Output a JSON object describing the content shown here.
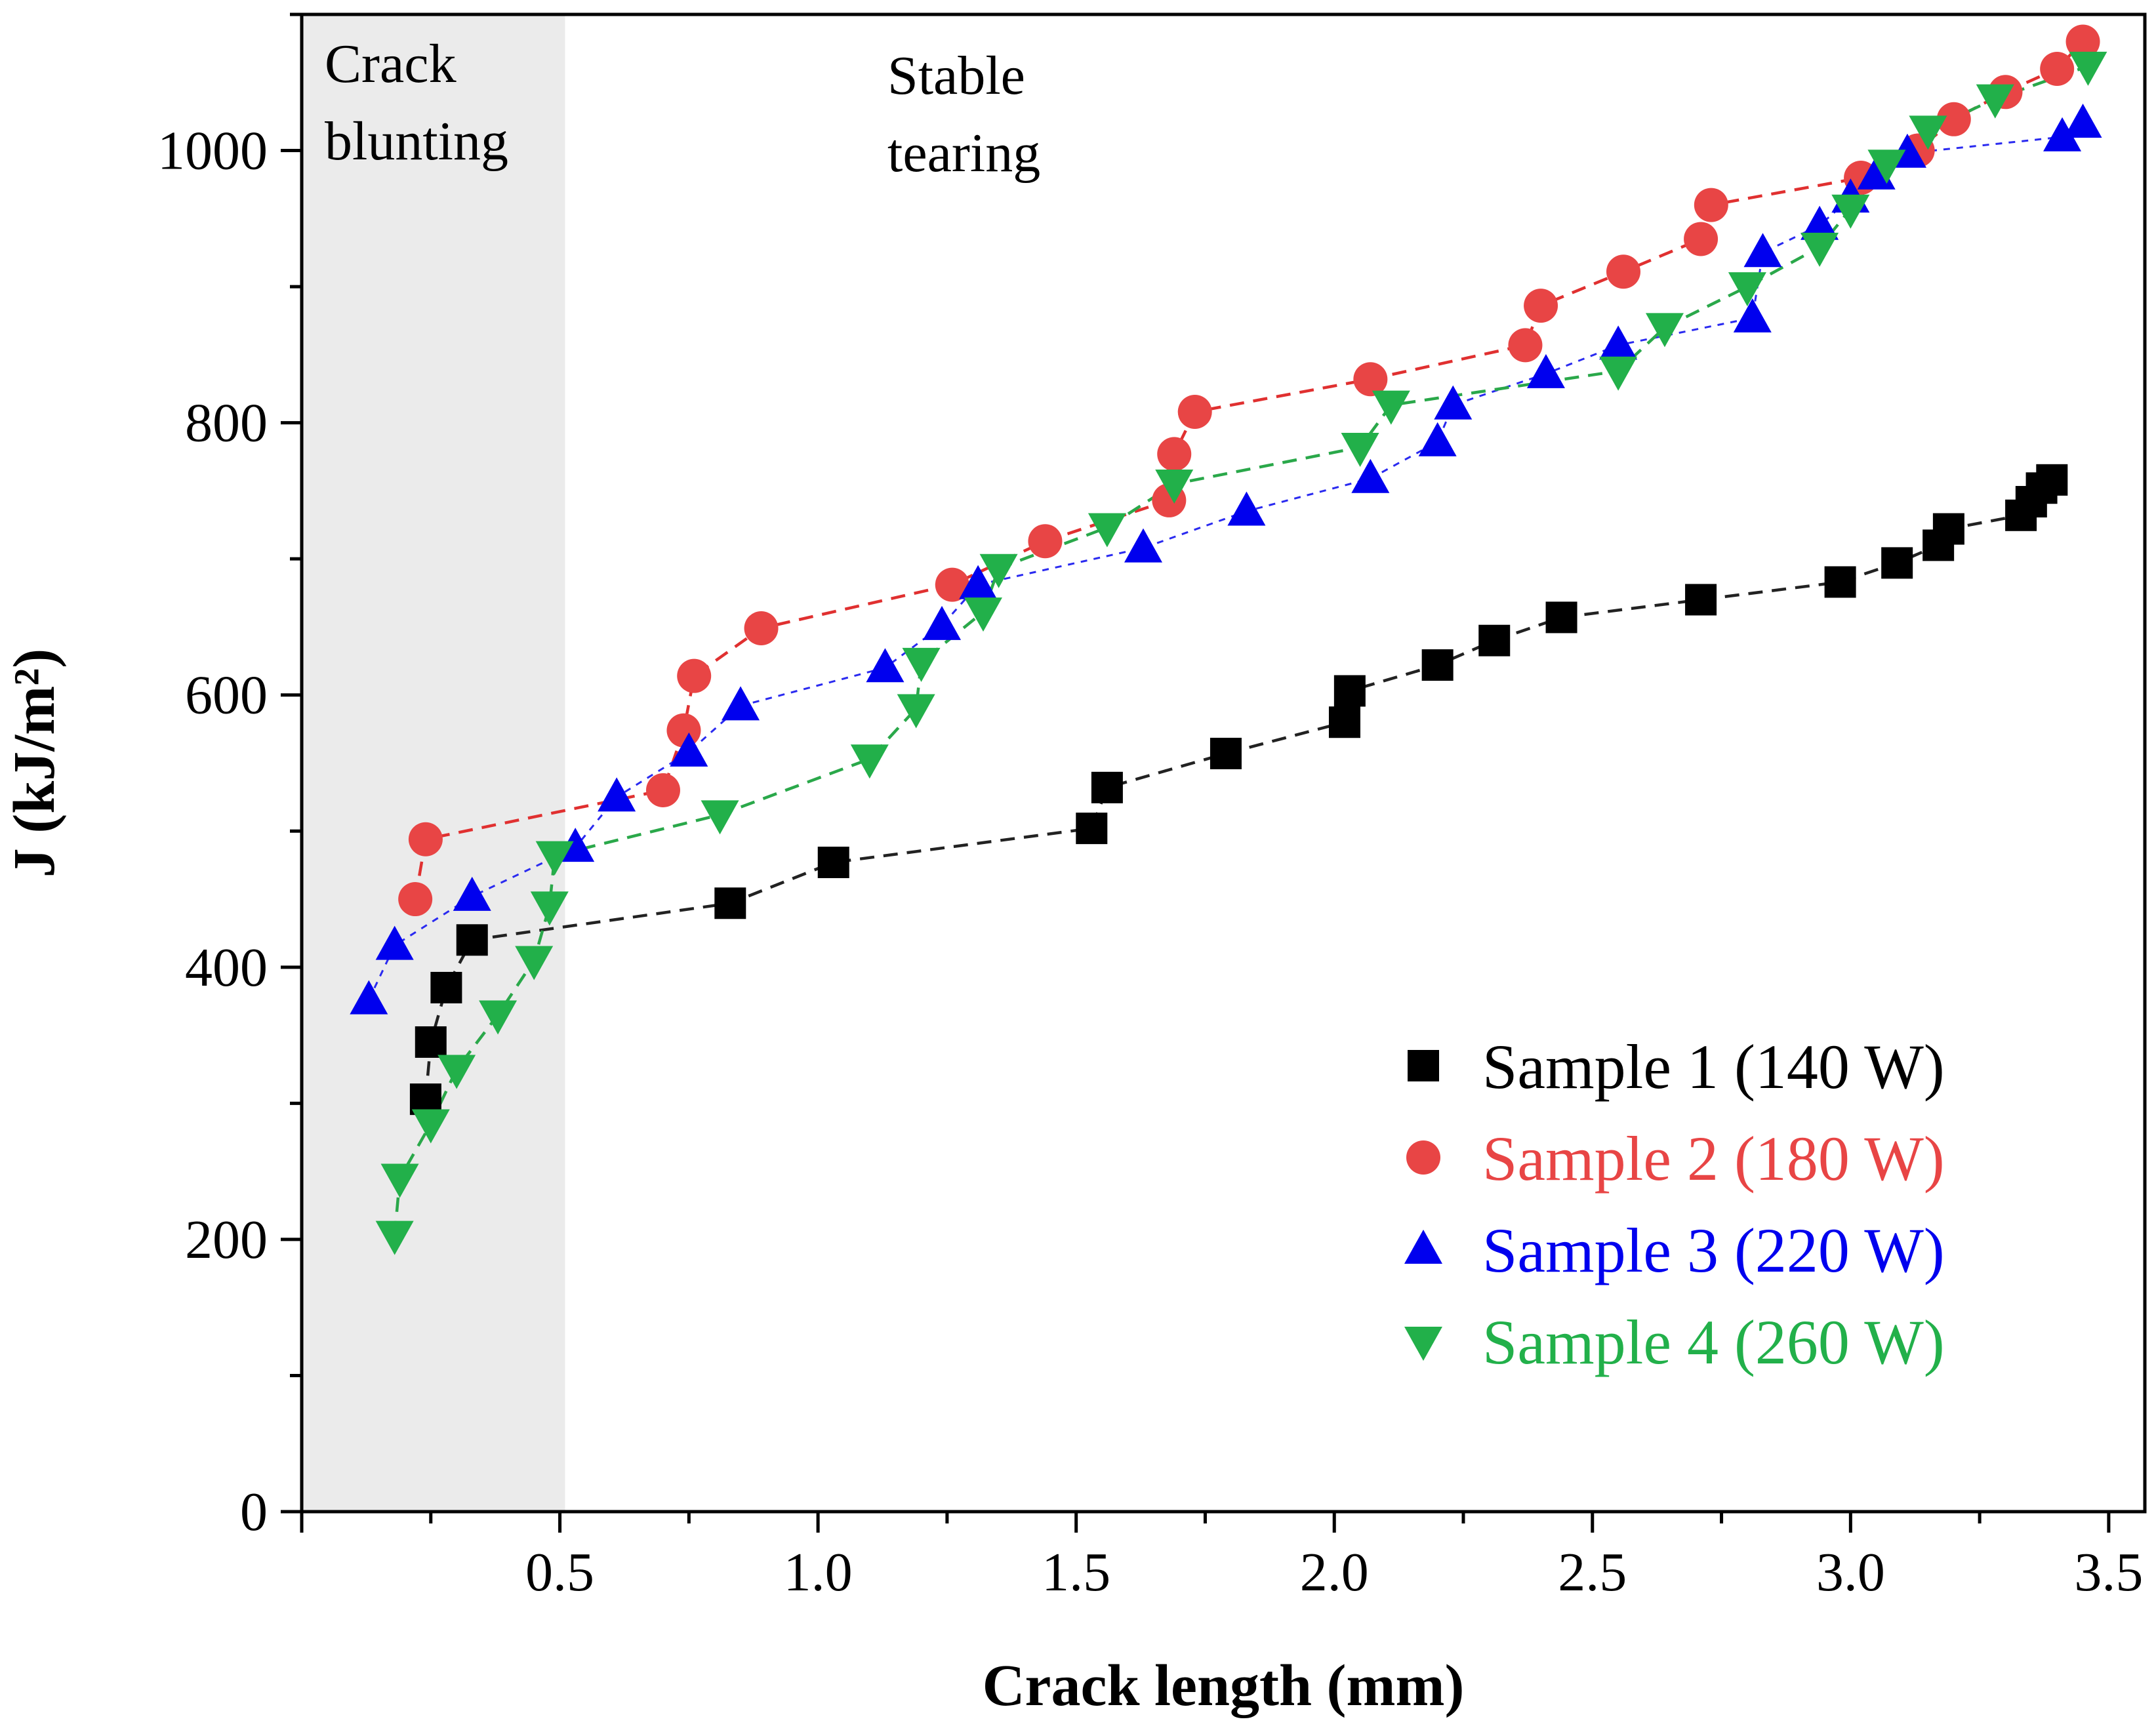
{
  "chart_data": {
    "type": "scatter",
    "title": "",
    "xlabel": "Crack length (mm)",
    "ylabel": "J (kJ/m²)",
    "xlim": [
      0,
      3.57
    ],
    "ylim": [
      0,
      1100
    ],
    "xticks": [
      0.5,
      1.0,
      1.5,
      2.0,
      2.5,
      3.0,
      3.5
    ],
    "xtick_labels": [
      "0.5",
      "1.0",
      "1.5",
      "2.0",
      "2.5",
      "3.0",
      "3.5"
    ],
    "yticks": [
      0,
      200,
      400,
      600,
      800,
      1000
    ],
    "ytick_labels": [
      "0",
      "200",
      "400",
      "600",
      "800",
      "1000"
    ],
    "grid": false,
    "legend_position": "bottom-right",
    "regions": [
      {
        "label_lines": [
          "Crack",
          "blunting"
        ],
        "x_start": 0,
        "x_end": 0.51,
        "shaded": true,
        "color": "#ebebeb"
      },
      {
        "label_lines": [
          "Stable",
          "tearing"
        ],
        "x_start": 0.51,
        "x_end": 3.57,
        "shaded": false
      }
    ],
    "series": [
      {
        "name": "Sample 1 (140 W)",
        "color": "#000000",
        "line_color": "#222222",
        "marker": "square",
        "x": [
          0.24,
          0.25,
          0.28,
          0.33,
          0.83,
          1.03,
          1.53,
          1.56,
          1.79,
          2.02,
          2.03,
          2.2,
          2.31,
          2.44,
          2.71,
          2.98,
          3.09,
          3.17,
          3.19,
          3.33,
          3.35,
          3.37,
          3.39
        ],
        "values": [
          303,
          345,
          385,
          420,
          447,
          477,
          502,
          532,
          557,
          580,
          603,
          622,
          640,
          657,
          670,
          683,
          697,
          710,
          722,
          732,
          742,
          752,
          758
        ]
      },
      {
        "name": "Sample 2 (180 W)",
        "color": "#e84545",
        "line_color": "#e03030",
        "marker": "circle",
        "x": [
          0.22,
          0.24,
          0.7,
          0.74,
          0.76,
          0.89,
          1.26,
          1.44,
          1.68,
          1.69,
          1.73,
          2.07,
          2.37,
          2.4,
          2.56,
          2.71,
          2.73,
          3.02,
          3.13,
          3.2,
          3.3,
          3.4,
          3.45
        ],
        "values": [
          450,
          494,
          530,
          574,
          614,
          649,
          681,
          713,
          743,
          777,
          808,
          832,
          857,
          886,
          911,
          935,
          960,
          980,
          1000,
          1023,
          1043,
          1060,
          1080
        ]
      },
      {
        "name": "Sample 3 (220 W)",
        "color": "#0000ee",
        "line_color": "#2a2af0",
        "marker": "triangle-up",
        "x": [
          0.13,
          0.18,
          0.33,
          0.53,
          0.61,
          0.75,
          0.85,
          1.13,
          1.24,
          1.31,
          1.63,
          1.83,
          2.07,
          2.2,
          2.23,
          2.41,
          2.55,
          2.81,
          2.83,
          2.94,
          3.0,
          3.05,
          3.11,
          3.41,
          3.45
        ],
        "values": [
          376,
          416,
          452,
          488,
          525,
          558,
          592,
          620,
          651,
          681,
          708,
          735,
          759,
          786,
          813,
          836,
          857,
          877,
          925,
          945,
          965,
          982,
          998,
          1010,
          1020
        ]
      },
      {
        "name": "Sample 4 (260 W)",
        "color": "#22b04a",
        "line_color": "#2aa84a",
        "marker": "triangle-down",
        "x": [
          0.18,
          0.19,
          0.25,
          0.3,
          0.38,
          0.45,
          0.48,
          0.49,
          0.81,
          1.1,
          1.19,
          1.2,
          1.32,
          1.35,
          1.56,
          1.69,
          2.05,
          2.11,
          2.55,
          2.64,
          2.8,
          2.94,
          3.0,
          3.07,
          3.15,
          3.28,
          3.46
        ],
        "values": [
          203,
          245,
          285,
          325,
          365,
          405,
          445,
          482,
          512,
          553,
          590,
          624,
          661,
          693,
          723,
          755,
          782,
          813,
          838,
          870,
          900,
          929,
          957,
          990,
          1015,
          1038,
          1062
        ]
      }
    ]
  }
}
